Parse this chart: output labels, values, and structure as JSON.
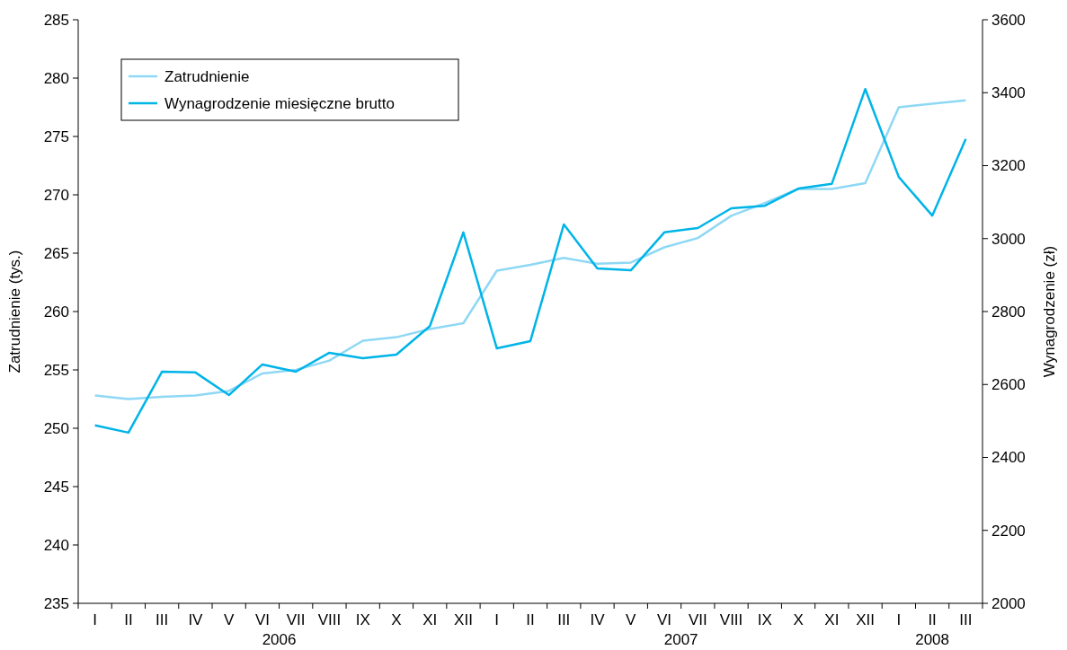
{
  "chart_data": {
    "type": "line",
    "ylabel": "Zatrudnienie (tys.)",
    "y2label": "Wynagrodzenie (zł)",
    "categories": [
      "I",
      "II",
      "III",
      "IV",
      "V",
      "VI",
      "VII",
      "VIII",
      "IX",
      "X",
      "XI",
      "XII",
      "I",
      "II",
      "III",
      "IV",
      "V",
      "VI",
      "VII",
      "VIII",
      "IX",
      "X",
      "XI",
      "XII",
      "I",
      "II",
      "III"
    ],
    "annotations": [
      "2006",
      "2007",
      "2008"
    ],
    "series": [
      {
        "name": "Zatrudnienie",
        "color": "#8fd8f5",
        "values": [
          252.8,
          252.5,
          252.7,
          252.8,
          253.2,
          254.7,
          255.0,
          255.8,
          257.5,
          257.8,
          258.5,
          259.0,
          263.5,
          264.0,
          264.6,
          264.1,
          264.2,
          265.5,
          266.3,
          268.2,
          269.3,
          270.5,
          270.5,
          271.0,
          277.5,
          277.8,
          278.1
        ]
      },
      {
        "name": "Wynagrodzenie miesięczne brutto",
        "color": "#00b4e8",
        "axis": "y2",
        "values": [
          2488,
          2468,
          2635,
          2633,
          2571,
          2655,
          2635,
          2687,
          2672,
          2682,
          2760,
          3017,
          2699,
          2719,
          3039,
          2918,
          2913,
          3017,
          3029,
          3083,
          3090,
          3137,
          3150,
          3410,
          3169,
          3063,
          3273
        ]
      }
    ],
    "ylim": [
      235,
      285
    ],
    "yticks": [
      235,
      240,
      245,
      250,
      255,
      260,
      265,
      270,
      275,
      280,
      285
    ],
    "y2lim": [
      2000,
      3600
    ],
    "y2ticks": [
      2000,
      2200,
      2400,
      2600,
      2800,
      3000,
      3200,
      3400,
      3600
    ],
    "legend": "top left",
    "grid": false,
    "marker": "none",
    "line_style": "solid"
  }
}
